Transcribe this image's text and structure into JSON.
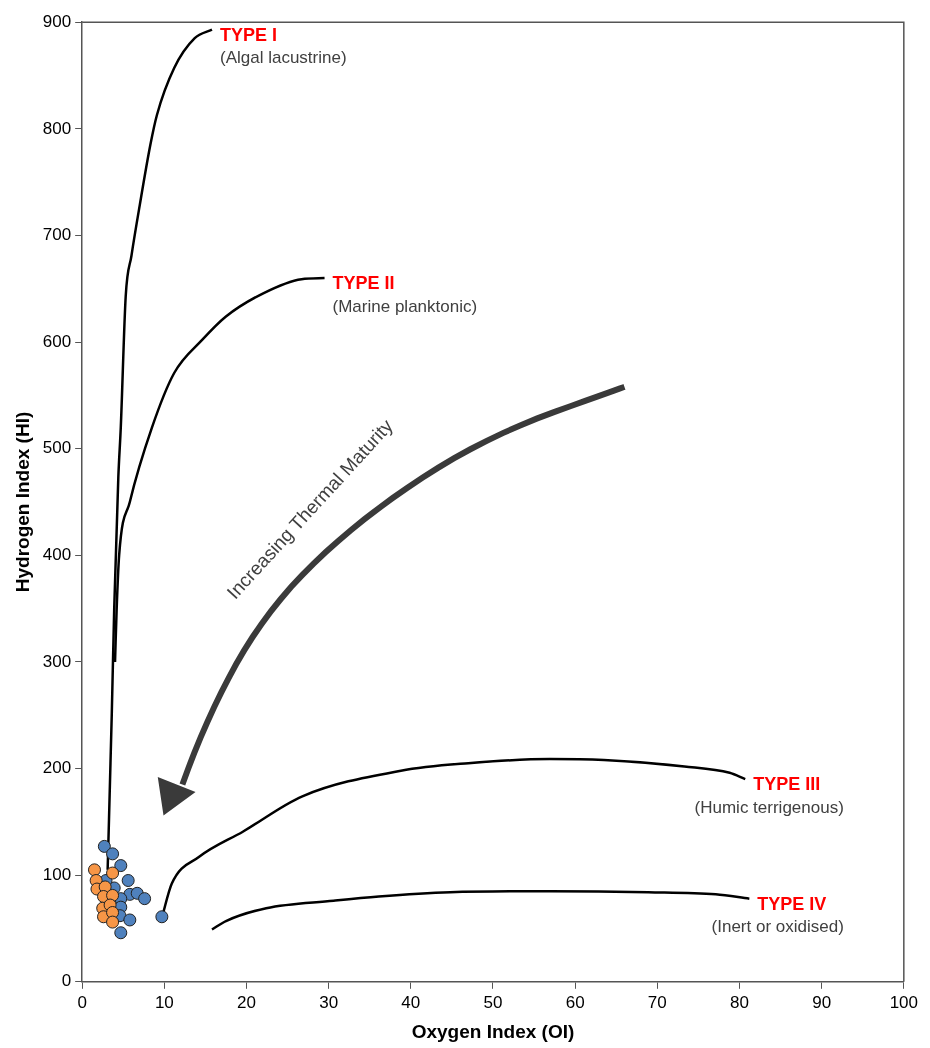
{
  "chart_data": {
    "type": "scatter",
    "xlabel": "Oxygen Index (OI)",
    "ylabel": "Hydrogen Index (HI)",
    "xlim": [
      0,
      100
    ],
    "ylim": [
      0,
      900
    ],
    "xticks": [
      0,
      10,
      20,
      30,
      40,
      50,
      60,
      70,
      80,
      90,
      100
    ],
    "yticks": [
      0,
      100,
      200,
      300,
      400,
      500,
      600,
      700,
      800,
      900
    ],
    "grid": false,
    "legend": false,
    "marker": "circle",
    "series": [
      {
        "name": "TYPE I",
        "type": "line",
        "color": "#000000",
        "marker": "none",
        "x": [
          3.1,
          3.6,
          3.9,
          4.4,
          4.7,
          5.3,
          6.0,
          7.0,
          8.3,
          9.1,
          11.2,
          13.7,
          15.8
        ],
        "values": [
          105,
          250,
          350,
          473,
          520,
          643,
          681,
          728,
          785,
          813,
          857,
          885,
          893
        ]
      },
      {
        "name": "TYPE II",
        "type": "line",
        "color": "#000000",
        "marker": "none",
        "x": [
          4.0,
          4.2,
          4.5,
          5.8,
          8.5,
          11.2,
          14.6,
          17.5,
          22.1,
          26.7,
          29.5
        ],
        "values": [
          300,
          350,
          400,
          450,
          520,
          571,
          602,
          624,
          646,
          659,
          660
        ]
      },
      {
        "name": "TYPE III",
        "type": "line",
        "color": "#000000",
        "marker": "none",
        "x": [
          9.7,
          10.9,
          14.2,
          19.6,
          26.8,
          38.8,
          47.0,
          56.9,
          63.5,
          73.3,
          78.8,
          80.7
        ],
        "values": [
          60,
          92,
          117,
          141,
          174,
          198,
          205,
          209,
          208,
          202,
          196,
          190
        ]
      },
      {
        "name": "TYPE IV",
        "type": "line",
        "color": "#000000",
        "marker": "none",
        "x": [
          15.8,
          17.5,
          22.4,
          30.6,
          36.1,
          44.8,
          56.9,
          68.9,
          77.1,
          81.2
        ],
        "values": [
          49,
          57,
          69,
          76,
          80,
          84,
          85,
          84,
          82,
          78
        ]
      },
      {
        "type": "scatter",
        "color": "#4f81bd",
        "x": [
          2.7,
          3.7,
          4.7,
          5.6,
          5.8,
          6.7,
          7.6,
          4.7,
          4.7,
          4.6,
          5.8,
          4.7,
          9.7,
          3.9,
          2.9
        ],
        "values": [
          127,
          120,
          109,
          95,
          82,
          83,
          78,
          78,
          70,
          62,
          58,
          46,
          61,
          88,
          95
        ]
      },
      {
        "type": "scatter",
        "color": "#f79646",
        "x": [
          1.5,
          1.7,
          1.8,
          3.7,
          2.8,
          2.6,
          3.7,
          2.5,
          3.4,
          2.6,
          3.7,
          3.7
        ],
        "values": [
          105,
          95,
          87,
          102,
          89,
          80,
          81,
          69,
          72,
          61,
          65,
          56
        ]
      }
    ],
    "annotations": [
      "Increasing Thermal Maturity",
      {
        "text": "(Algal lacustrine)",
        "x": 15.8,
        "y": 893
      },
      {
        "text": "(Marine planktonic)",
        "x": 29.5,
        "y": 660
      },
      {
        "text": "(Humic terrigenous)",
        "x": 80.7,
        "y": 190
      },
      {
        "text": "(Inert or oxidised)",
        "x": 81.2,
        "y": 78
      }
    ]
  }
}
